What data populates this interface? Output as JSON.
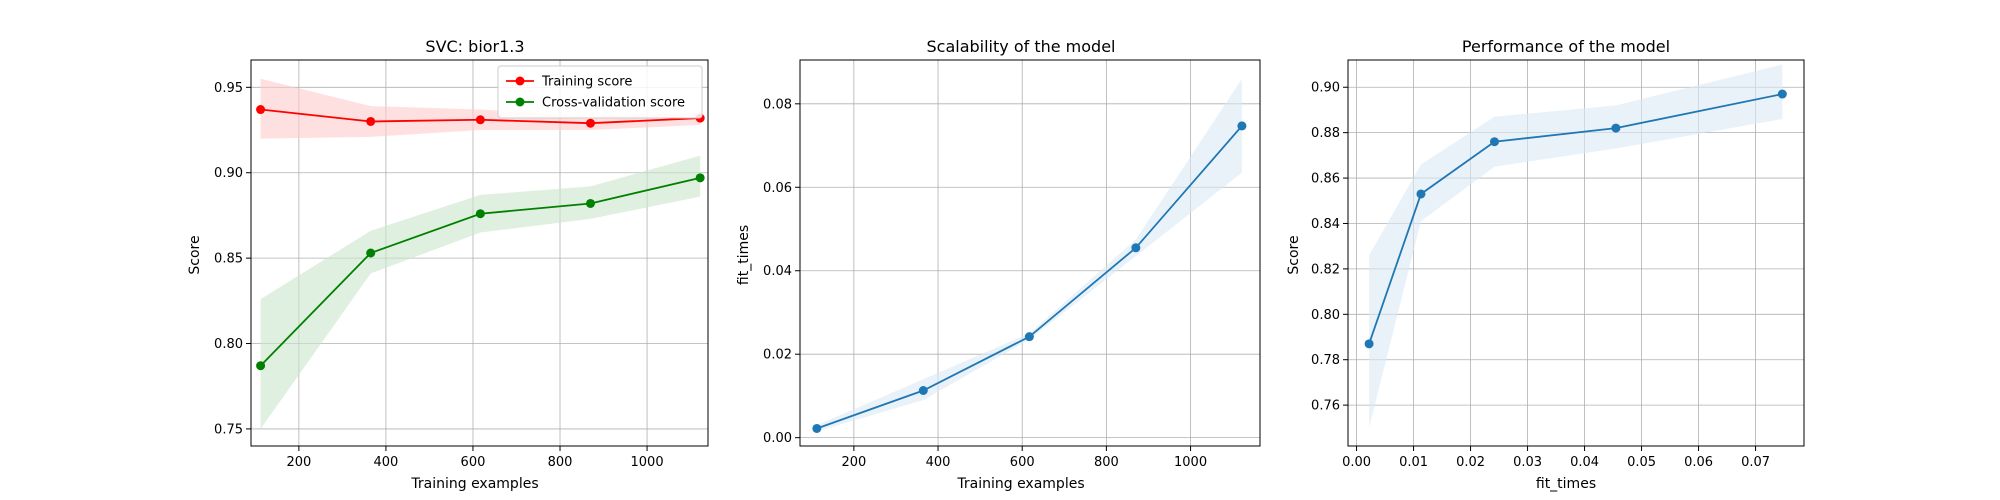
{
  "chart_data": [
    {
      "type": "line",
      "title": "SVC: bior1.3",
      "xlabel": "Training examples",
      "ylabel": "Score",
      "xlim": [
        90,
        1140
      ],
      "ylim": [
        0.74,
        0.966
      ],
      "xticks": [
        200,
        400,
        600,
        800,
        1000
      ],
      "yticks": [
        0.75,
        0.8,
        0.85,
        0.9,
        0.95
      ],
      "ytick_labels": [
        "0.75",
        "0.80",
        "0.85",
        "0.90",
        "0.95"
      ],
      "grid": true,
      "legend_position": "top-right",
      "x": [
        112,
        365,
        617,
        870,
        1122
      ],
      "series": [
        {
          "name": "Training score",
          "color": "#ff0000",
          "band_color": "#ffcccc",
          "values": [
            0.937,
            0.93,
            0.931,
            0.929,
            0.932
          ],
          "upper": [
            0.955,
            0.939,
            0.937,
            0.933,
            0.935
          ],
          "lower": [
            0.92,
            0.921,
            0.925,
            0.925,
            0.928
          ]
        },
        {
          "name": "Cross-validation score",
          "color": "#008000",
          "band_color": "#cce6cc",
          "values": [
            0.787,
            0.853,
            0.876,
            0.882,
            0.897
          ],
          "upper": [
            0.826,
            0.866,
            0.887,
            0.892,
            0.91
          ],
          "lower": [
            0.75,
            0.841,
            0.865,
            0.873,
            0.886
          ]
        }
      ]
    },
    {
      "type": "line",
      "title": "Scalability of the model",
      "xlabel": "Training examples",
      "ylabel": "fit_times",
      "xlim": [
        72,
        1165
      ],
      "ylim": [
        -0.002,
        0.0905
      ],
      "xticks": [
        200,
        400,
        600,
        800,
        1000
      ],
      "yticks": [
        0.0,
        0.02,
        0.04,
        0.06,
        0.08
      ],
      "ytick_labels": [
        "0.00",
        "0.02",
        "0.04",
        "0.06",
        "0.08"
      ],
      "grid": true,
      "x": [
        112,
        365,
        617,
        870,
        1122
      ],
      "series": [
        {
          "color": "#1f77b4",
          "band_color": "#dce9f5",
          "values": [
            0.0022,
            0.0113,
            0.0242,
            0.0455,
            0.0747
          ],
          "upper": [
            0.003,
            0.014,
            0.025,
            0.0475,
            0.086
          ],
          "lower": [
            0.0015,
            0.009,
            0.0235,
            0.0435,
            0.0635
          ]
        }
      ]
    },
    {
      "type": "line",
      "title": "Performance of the model",
      "xlabel": "fit_times",
      "ylabel": "Score",
      "xlim": [
        -0.0015,
        0.0785
      ],
      "ylim": [
        0.742,
        0.912
      ],
      "xticks": [
        0.0,
        0.01,
        0.02,
        0.03,
        0.04,
        0.05,
        0.06,
        0.07
      ],
      "xtick_labels": [
        "0.00",
        "0.01",
        "0.02",
        "0.03",
        "0.04",
        "0.05",
        "0.06",
        "0.07"
      ],
      "yticks": [
        0.76,
        0.78,
        0.8,
        0.82,
        0.84,
        0.86,
        0.88,
        0.9
      ],
      "ytick_labels": [
        "0.76",
        "0.78",
        "0.80",
        "0.82",
        "0.84",
        "0.86",
        "0.88",
        "0.90"
      ],
      "grid": true,
      "x": [
        0.0022,
        0.0113,
        0.0242,
        0.0455,
        0.0747
      ],
      "series": [
        {
          "color": "#1f77b4",
          "band_color": "#dce9f5",
          "values": [
            0.787,
            0.853,
            0.876,
            0.882,
            0.897
          ],
          "upper": [
            0.826,
            0.866,
            0.887,
            0.892,
            0.91
          ],
          "lower": [
            0.75,
            0.841,
            0.865,
            0.873,
            0.886
          ]
        }
      ]
    }
  ]
}
